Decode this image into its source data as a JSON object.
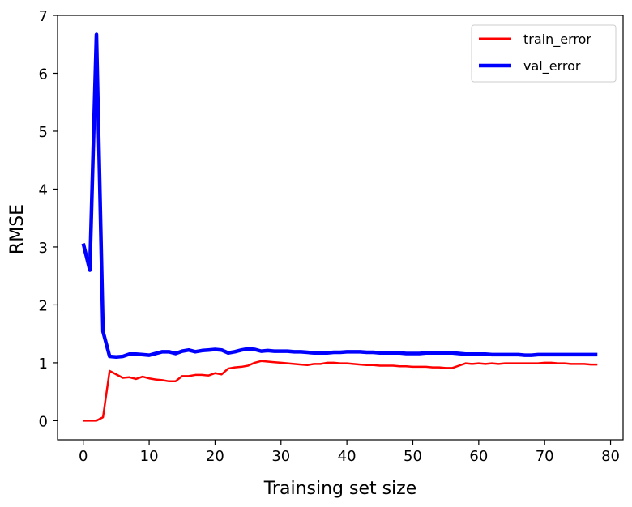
{
  "chart_data": {
    "type": "line",
    "xlabel": "Trainsing set size",
    "ylabel": "RMSE",
    "xlim": [
      -3.9,
      81.9
    ],
    "ylim": [
      -0.33,
      7.0
    ],
    "xticks": [
      0,
      10,
      20,
      30,
      40,
      50,
      60,
      70,
      80
    ],
    "yticks": [
      0,
      1,
      2,
      3,
      4,
      5,
      6,
      7
    ],
    "grid": false,
    "legend_position": "upper-right",
    "series": [
      {
        "name": "train_error",
        "color": "#ff0000",
        "linewidth": 2.5,
        "x": [
          0,
          1,
          2,
          3,
          4,
          5,
          6,
          7,
          8,
          9,
          10,
          11,
          12,
          13,
          14,
          15,
          16,
          17,
          18,
          19,
          20,
          21,
          22,
          23,
          24,
          25,
          26,
          27,
          28,
          29,
          30,
          31,
          32,
          33,
          34,
          35,
          36,
          37,
          38,
          39,
          40,
          41,
          42,
          43,
          44,
          45,
          46,
          47,
          48,
          49,
          50,
          51,
          52,
          53,
          54,
          55,
          56,
          57,
          58,
          59,
          60,
          61,
          62,
          63,
          64,
          65,
          66,
          67,
          68,
          69,
          70,
          71,
          72,
          73,
          74,
          75,
          76,
          77,
          78
        ],
        "values": [
          0.0,
          0.0,
          0.0,
          0.06,
          0.86,
          0.8,
          0.74,
          0.75,
          0.72,
          0.76,
          0.73,
          0.71,
          0.7,
          0.68,
          0.68,
          0.77,
          0.77,
          0.79,
          0.79,
          0.78,
          0.82,
          0.8,
          0.9,
          0.92,
          0.93,
          0.95,
          1.0,
          1.03,
          1.02,
          1.01,
          1.0,
          0.99,
          0.98,
          0.97,
          0.96,
          0.98,
          0.98,
          1.0,
          1.0,
          0.99,
          0.99,
          0.98,
          0.97,
          0.96,
          0.96,
          0.95,
          0.95,
          0.95,
          0.94,
          0.94,
          0.93,
          0.93,
          0.93,
          0.92,
          0.92,
          0.91,
          0.91,
          0.95,
          0.99,
          0.98,
          0.99,
          0.98,
          0.99,
          0.98,
          0.99,
          0.99,
          0.99,
          0.99,
          0.99,
          0.99,
          1.0,
          1.0,
          0.99,
          0.99,
          0.98,
          0.98,
          0.98,
          0.97,
          0.97
        ]
      },
      {
        "name": "val_error",
        "color": "#0000ff",
        "linewidth": 4.5,
        "x": [
          0,
          1,
          2,
          3,
          4,
          5,
          6,
          7,
          8,
          9,
          10,
          11,
          12,
          13,
          14,
          15,
          16,
          17,
          18,
          19,
          20,
          21,
          22,
          23,
          24,
          25,
          26,
          27,
          28,
          29,
          30,
          31,
          32,
          33,
          34,
          35,
          36,
          37,
          38,
          39,
          40,
          41,
          42,
          43,
          44,
          45,
          46,
          47,
          48,
          49,
          50,
          51,
          52,
          53,
          54,
          55,
          56,
          57,
          58,
          59,
          60,
          61,
          62,
          63,
          64,
          65,
          66,
          67,
          68,
          69,
          70,
          71,
          72,
          73,
          74,
          75,
          76,
          77,
          78
        ],
        "values": [
          3.06,
          2.6,
          6.67,
          1.54,
          1.11,
          1.1,
          1.11,
          1.15,
          1.15,
          1.14,
          1.13,
          1.16,
          1.19,
          1.19,
          1.16,
          1.2,
          1.22,
          1.19,
          1.21,
          1.22,
          1.23,
          1.22,
          1.17,
          1.19,
          1.22,
          1.24,
          1.23,
          1.2,
          1.21,
          1.2,
          1.2,
          1.2,
          1.19,
          1.19,
          1.18,
          1.17,
          1.17,
          1.17,
          1.18,
          1.18,
          1.19,
          1.19,
          1.19,
          1.18,
          1.18,
          1.17,
          1.17,
          1.17,
          1.17,
          1.16,
          1.16,
          1.16,
          1.17,
          1.17,
          1.17,
          1.17,
          1.17,
          1.16,
          1.15,
          1.15,
          1.15,
          1.15,
          1.14,
          1.14,
          1.14,
          1.14,
          1.14,
          1.13,
          1.13,
          1.14,
          1.14,
          1.14,
          1.14,
          1.14,
          1.14,
          1.14,
          1.14,
          1.14,
          1.14
        ]
      }
    ]
  }
}
